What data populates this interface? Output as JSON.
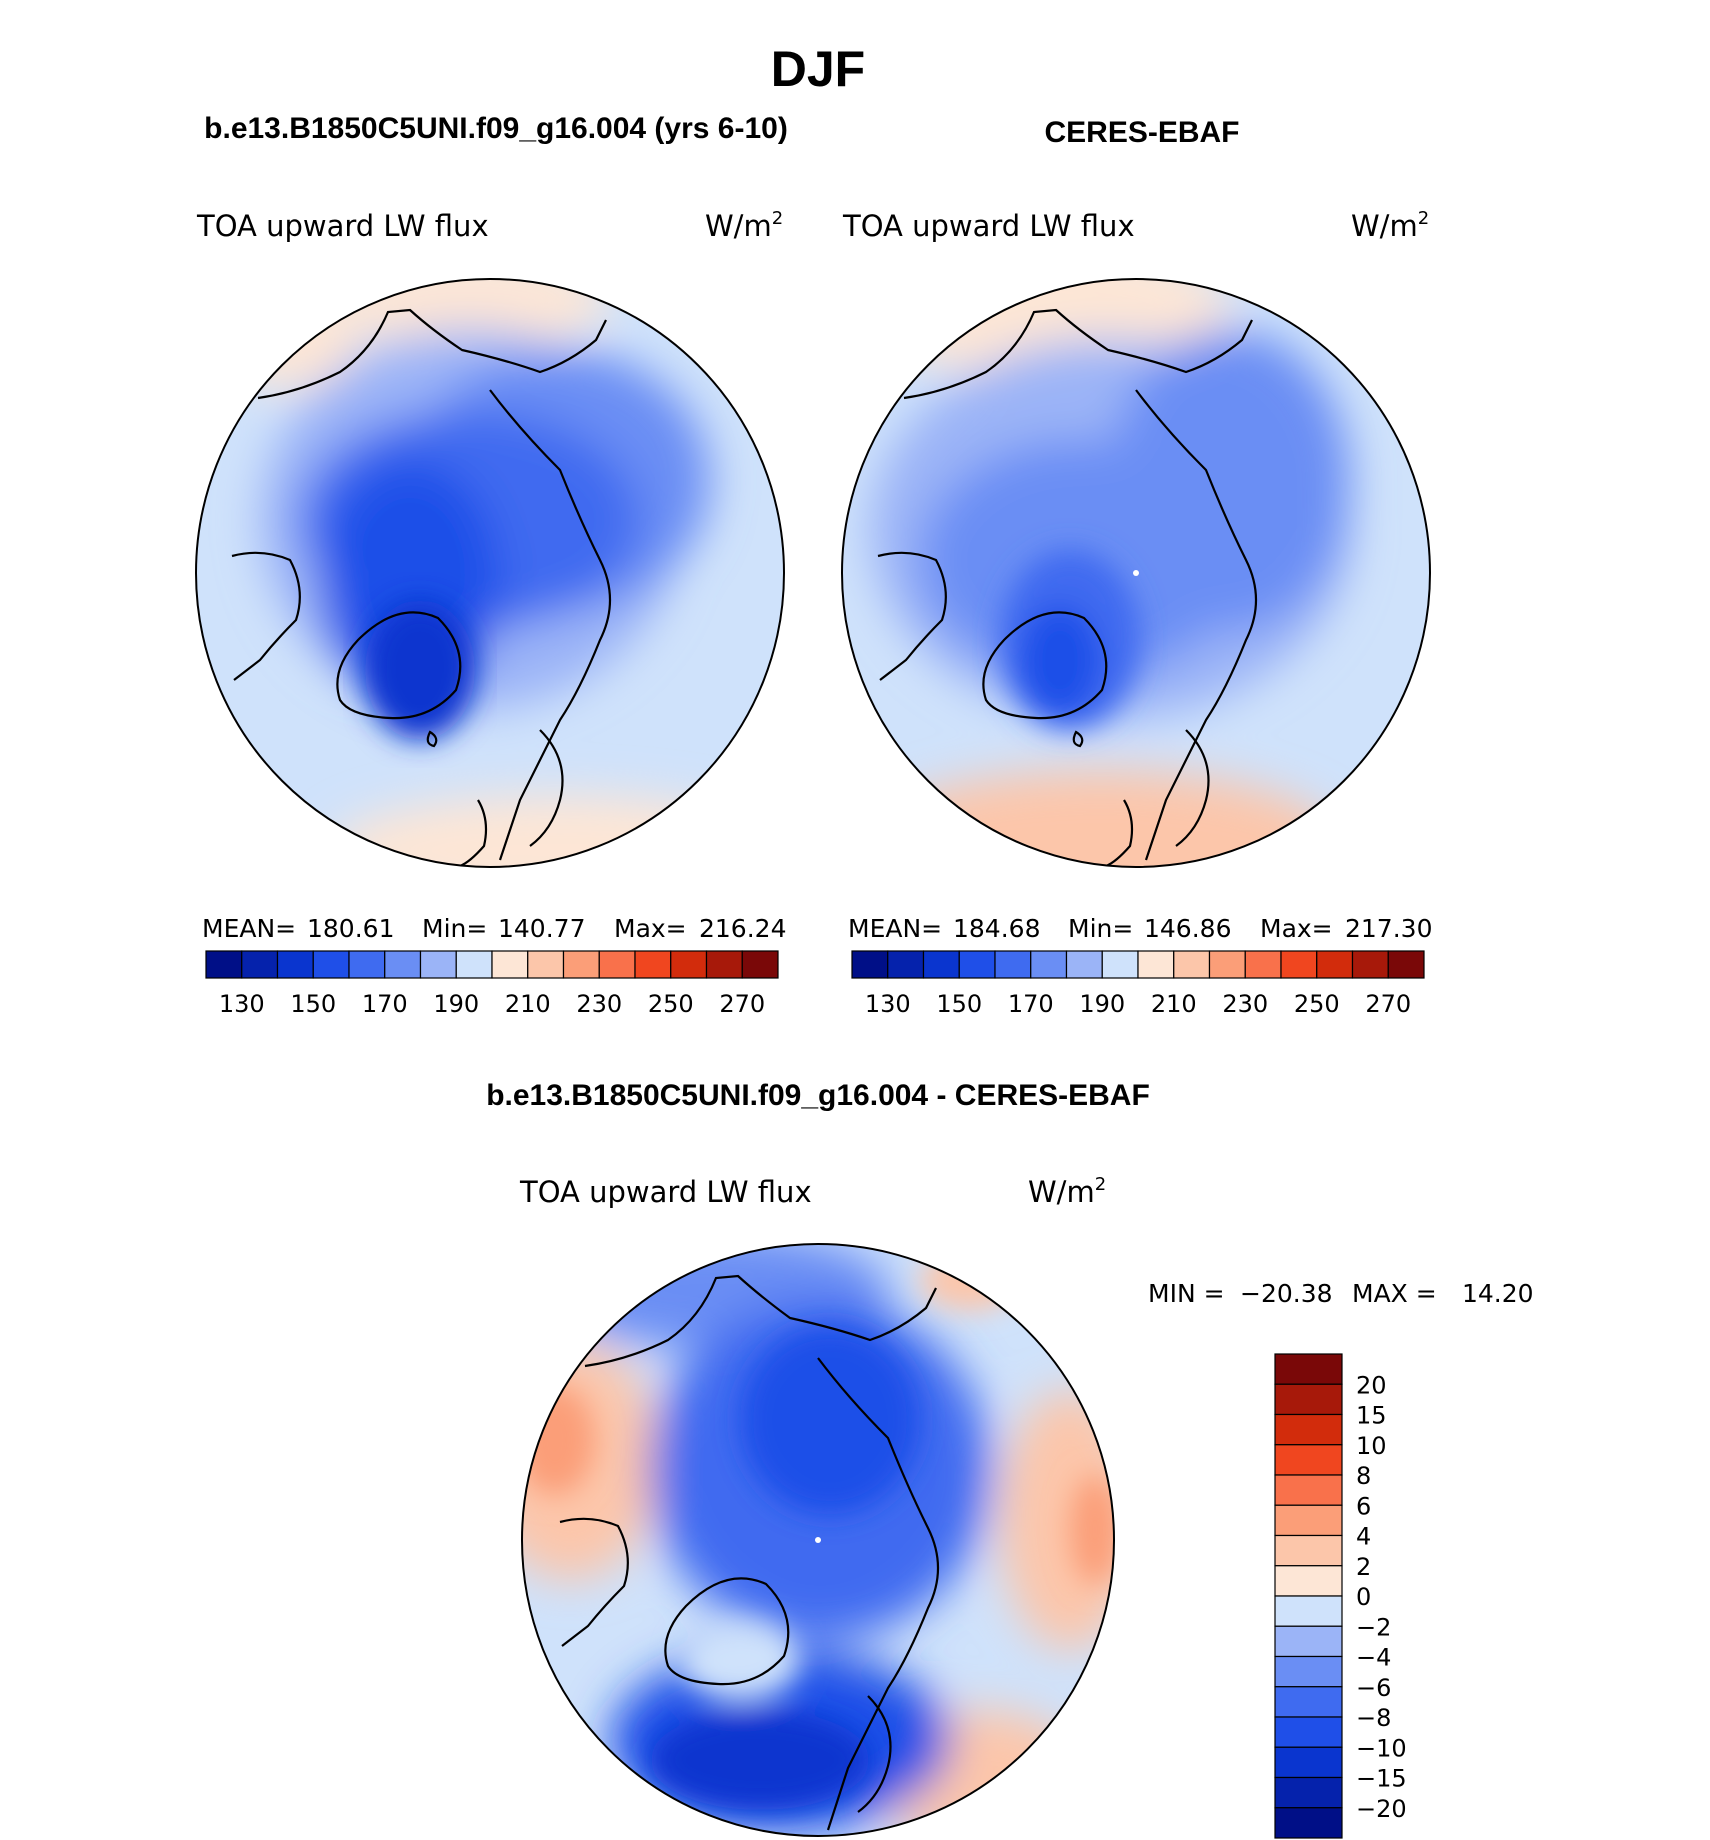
{
  "chart_data": {
    "type": "heatmap",
    "title": "DJF",
    "variable": "TOA upward LW flux",
    "units": "W/m",
    "units_exponent": "2",
    "panels": [
      {
        "title": "b.e13.B1850C5UNI.f09_g16.004 (yrs 6-10)",
        "stats": {
          "mean_label": "MEAN=",
          "mean": "180.61",
          "min_label": "Min=",
          "min": "140.77",
          "max_label": "Max=",
          "max": "216.24"
        },
        "colorbar": {
          "levels": [
            130,
            140,
            150,
            160,
            170,
            180,
            190,
            200,
            210,
            220,
            230,
            240,
            250,
            260,
            270
          ],
          "tick_labels": [
            "130",
            "150",
            "170",
            "190",
            "210",
            "230",
            "250",
            "270"
          ]
        }
      },
      {
        "title": "CERES-EBAF",
        "stats": {
          "mean_label": "MEAN=",
          "mean": "184.68",
          "min_label": "Min=",
          "min": "146.86",
          "max_label": "Max=",
          "max": "217.30"
        },
        "colorbar": {
          "levels": [
            130,
            140,
            150,
            160,
            170,
            180,
            190,
            200,
            210,
            220,
            230,
            240,
            250,
            260,
            270
          ],
          "tick_labels": [
            "130",
            "150",
            "170",
            "190",
            "210",
            "230",
            "250",
            "270"
          ]
        }
      },
      {
        "title": "b.e13.B1850C5UNI.f09_g16.004 - CERES-EBAF",
        "stats": {
          "min_label": "MIN =",
          "min": "−20.38",
          "max_label": "MAX =",
          "max": "14.20"
        },
        "colorbar": {
          "levels": [
            20,
            15,
            10,
            8,
            6,
            4,
            2,
            0,
            -2,
            -4,
            -6,
            -8,
            -10,
            -15,
            -20
          ],
          "tick_labels": [
            "20",
            "15",
            "10",
            "8",
            "6",
            "4",
            "2",
            "0",
            "−2",
            "−4",
            "−6",
            "−8",
            "−10",
            "−15",
            "−20"
          ]
        }
      }
    ],
    "palette_abs": [
      "#000f87",
      "#0522ac",
      "#0a35cf",
      "#1f4fe8",
      "#3f6bf0",
      "#6a8ef4",
      "#9bb4f7",
      "#cfe2fb",
      "#fde6d6",
      "#fcc6aa",
      "#fb9e78",
      "#f9714b",
      "#f0461f",
      "#d22c0c",
      "#a7190a",
      "#7a0808"
    ],
    "palette_diff": [
      "#7a0808",
      "#a7190a",
      "#d22c0c",
      "#f0461f",
      "#f9714b",
      "#fb9e78",
      "#fcc6aa",
      "#fde6d6",
      "#cfe2fb",
      "#9bb4f7",
      "#6a8ef4",
      "#3f6bf0",
      "#1f4fe8",
      "#0a35cf",
      "#0522ac",
      "#000f87"
    ]
  }
}
